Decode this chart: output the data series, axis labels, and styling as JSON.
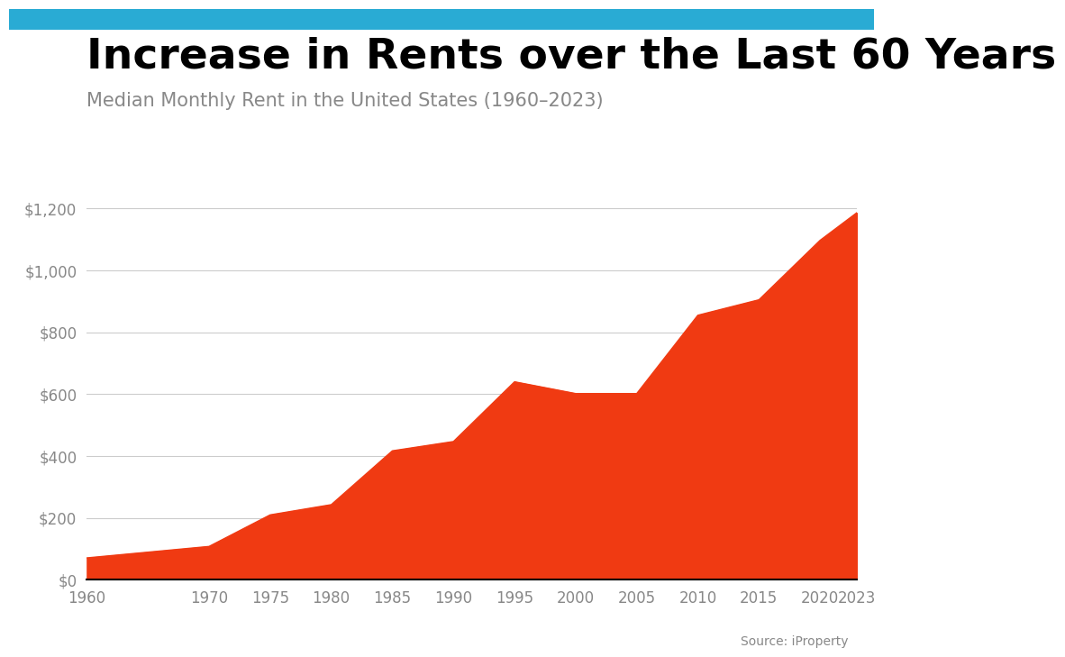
{
  "title": "Increase in Rents over the Last 60 Years",
  "subtitle": "Median Monthly Rent in the United States (1960–2023)",
  "source": "Source: iProperty",
  "fill_color": "#F03A12",
  "line_color": "#F03A12",
  "background_color": "#FFFFFF",
  "top_bar_color": "#29ABD4",
  "years": [
    1960,
    1970,
    1975,
    1980,
    1985,
    1990,
    1995,
    2000,
    2005,
    2010,
    2015,
    2020,
    2023
  ],
  "values": [
    71,
    108,
    210,
    243,
    417,
    447,
    640,
    602,
    602,
    855,
    905,
    1097,
    1186
  ],
  "ylim": [
    0,
    1300
  ],
  "yticks": [
    0,
    200,
    400,
    600,
    800,
    1000,
    1200
  ],
  "ytick_labels": [
    "$0",
    "$200",
    "$400",
    "$600",
    "$800",
    "$1,000",
    "$1,200"
  ],
  "title_fontsize": 34,
  "subtitle_fontsize": 15,
  "tick_label_color": "#888888",
  "grid_color": "#CCCCCC",
  "axis_bottom_color": "#000000",
  "title_color": "#000000",
  "subtitle_color": "#888888"
}
